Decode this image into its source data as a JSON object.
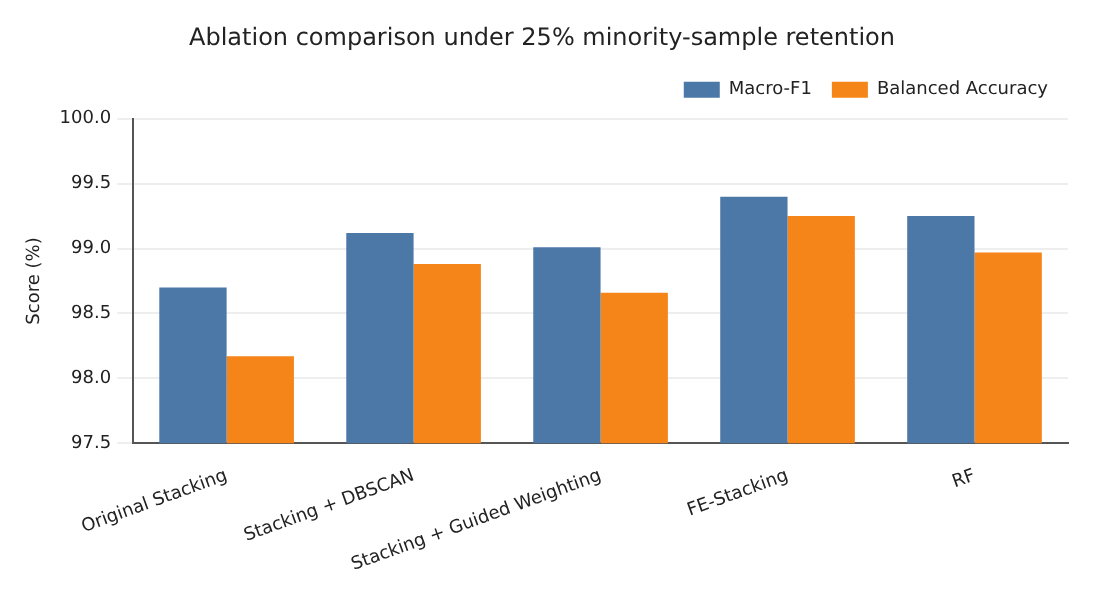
{
  "chart_data": {
    "type": "bar",
    "title": "Ablation comparison under 25% minority-sample retention",
    "ylabel": "Score (%)",
    "categories": [
      "Original Stacking",
      "Stacking + DBSCAN",
      "Stacking + Guided Weighting",
      "FE-Stacking",
      "RF"
    ],
    "series": [
      {
        "name": "Macro-F1",
        "color": "#4c78a8",
        "values": [
          98.7,
          99.12,
          99.01,
          99.4,
          99.25
        ]
      },
      {
        "name": "Balanced Accuracy",
        "color": "#f58518",
        "values": [
          98.17,
          98.88,
          98.66,
          99.25,
          98.97
        ]
      }
    ],
    "ylim": [
      97.5,
      100.0
    ],
    "yticks": [
      {
        "value": 97.5,
        "label": "97.5"
      },
      {
        "value": 98.0,
        "label": "98.0"
      },
      {
        "value": 98.5,
        "label": "98.5"
      },
      {
        "value": 99.0,
        "label": "99.0"
      },
      {
        "value": 99.5,
        "label": "99.5"
      },
      {
        "value": 100.0,
        "label": "100.0"
      }
    ],
    "grid": "y",
    "legend": "top right"
  }
}
